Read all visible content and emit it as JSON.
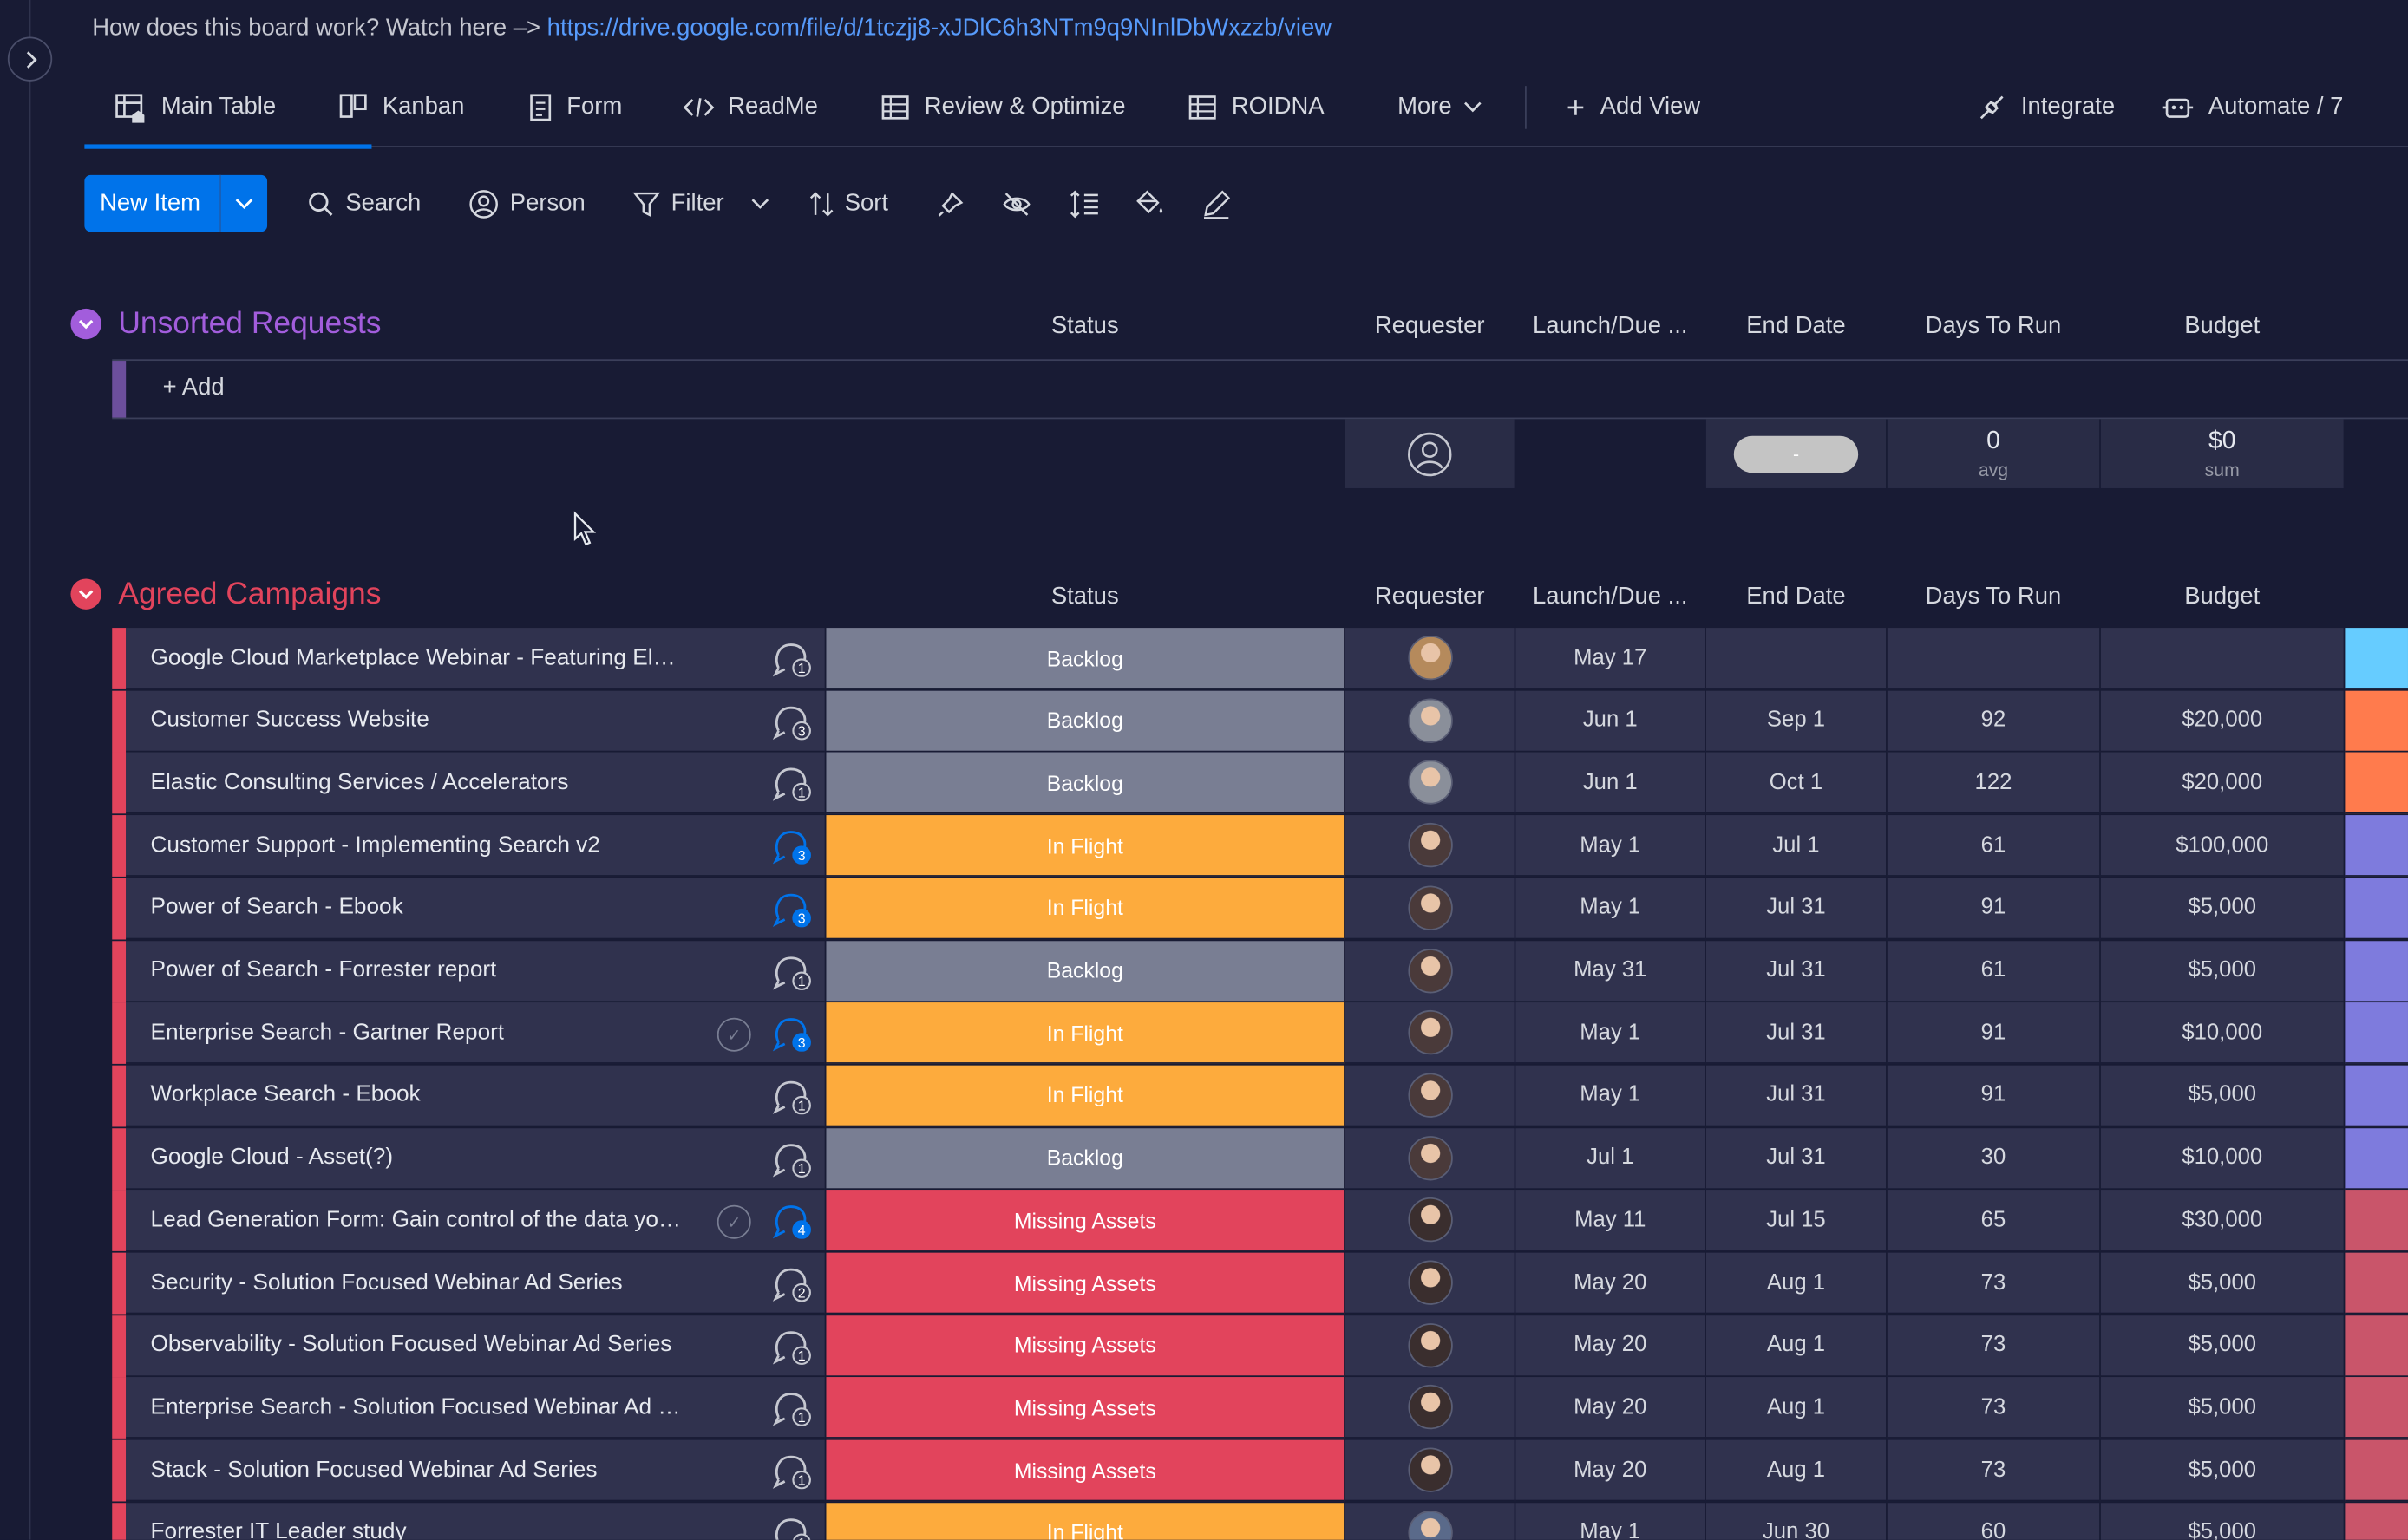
{
  "help": {
    "text": "How does this board work? Watch here –> ",
    "link": "https://drive.google.com/file/d/1tczjj8-xJDlC6h3NTm9q9NInlDbWxzzb/view"
  },
  "tabs": [
    {
      "label": "Main Table",
      "icon": "table-home-icon"
    },
    {
      "label": "Kanban",
      "icon": "kanban-icon"
    },
    {
      "label": "Form",
      "icon": "form-icon"
    },
    {
      "label": "ReadMe",
      "icon": "code-icon"
    },
    {
      "label": "Review & Optimize",
      "icon": "table-icon"
    },
    {
      "label": "ROIDNA",
      "icon": "table-icon"
    }
  ],
  "more_label": "More",
  "add_view_label": "Add View",
  "integrate_label": "Integrate",
  "automate_label": "Automate / 7",
  "toolbar": {
    "new_item": "New Item",
    "search": "Search",
    "person": "Person",
    "filter": "Filter",
    "sort": "Sort"
  },
  "columns": {
    "status": "Status",
    "requester": "Requester",
    "launch": "Launch/Due ...",
    "end": "End Date",
    "days": "Days To Run",
    "budget": "Budget"
  },
  "groups": {
    "unsorted": {
      "title": "Unsorted Requests",
      "color": "#a25ddc",
      "add_label": "+ Add",
      "summary": {
        "end_pill": "-",
        "days": "0",
        "days_label": "avg",
        "budget": "$0",
        "budget_label": "sum"
      }
    },
    "agreed": {
      "title": "Agreed Campaigns",
      "color": "#e2445c"
    }
  },
  "status_colors": {
    "Backlog": "#797e93",
    "In Flight": "#fdab3d",
    "Missing Assets": "#e2445c"
  },
  "rows": [
    {
      "name": "Google Cloud Marketplace Webinar - Featuring Elastic",
      "updates": "1",
      "active": false,
      "check": false,
      "status": "Backlog",
      "launch": "May 17",
      "end": "",
      "days": "",
      "budget": "",
      "tag": "#66ccff",
      "avatar": "#b58a5c"
    },
    {
      "name": "Customer Success Website",
      "updates": "3",
      "active": false,
      "check": false,
      "status": "Backlog",
      "launch": "Jun 1",
      "end": "Sep 1",
      "days": "92",
      "budget": "$20,000",
      "tag": "#ff7b4d",
      "avatar": "#8a8f9a"
    },
    {
      "name": "Elastic Consulting Services / Accelerators",
      "updates": "1",
      "active": false,
      "check": false,
      "status": "Backlog",
      "launch": "Jun 1",
      "end": "Oct 1",
      "days": "122",
      "budget": "$20,000",
      "tag": "#ff7b4d",
      "avatar": "#8a8f9a"
    },
    {
      "name": "Customer Support - Implementing Search v2",
      "updates": "3",
      "active": true,
      "check": false,
      "status": "In Flight",
      "launch": "May 1",
      "end": "Jul 1",
      "days": "61",
      "budget": "$100,000",
      "tag": "#7e7bdd",
      "avatar": "#4a3a3a"
    },
    {
      "name": "Power of Search - Ebook",
      "updates": "3",
      "active": true,
      "check": false,
      "status": "In Flight",
      "launch": "May 1",
      "end": "Jul 31",
      "days": "91",
      "budget": "$5,000",
      "tag": "#7e7bdd",
      "avatar": "#4a3a3a"
    },
    {
      "name": "Power of Search - Forrester report",
      "updates": "1",
      "active": false,
      "check": false,
      "status": "Backlog",
      "launch": "May 31",
      "end": "Jul 31",
      "days": "61",
      "budget": "$5,000",
      "tag": "#7e7bdd",
      "avatar": "#4a3a3a"
    },
    {
      "name": "Enterprise Search - Gartner Report",
      "updates": "3",
      "active": true,
      "check": true,
      "status": "In Flight",
      "launch": "May 1",
      "end": "Jul 31",
      "days": "91",
      "budget": "$10,000",
      "tag": "#7e7bdd",
      "avatar": "#4a3a3a"
    },
    {
      "name": "Workplace Search - Ebook",
      "updates": "1",
      "active": false,
      "check": false,
      "status": "In Flight",
      "launch": "May 1",
      "end": "Jul 31",
      "days": "91",
      "budget": "$5,000",
      "tag": "#7e7bdd",
      "avatar": "#4a3a3a"
    },
    {
      "name": "Google Cloud - Asset(?)",
      "updates": "1",
      "active": false,
      "check": false,
      "status": "Backlog",
      "launch": "Jul 1",
      "end": "Jul 31",
      "days": "30",
      "budget": "$10,000",
      "tag": "#7e7bdd",
      "avatar": "#4a3a3a"
    },
    {
      "name": "Lead Generation Form: Gain control of the data your organization creates",
      "updates": "4",
      "active": true,
      "check": true,
      "status": "Missing Assets",
      "launch": "May 11",
      "end": "Jul 15",
      "days": "65",
      "budget": "$30,000",
      "tag": "#c9556a",
      "avatar": "#3a2e2e"
    },
    {
      "name": "Security - Solution Focused Webinar Ad Series",
      "updates": "2",
      "active": false,
      "check": false,
      "status": "Missing Assets",
      "launch": "May 20",
      "end": "Aug 1",
      "days": "73",
      "budget": "$5,000",
      "tag": "#c9556a",
      "avatar": "#3a2e2e"
    },
    {
      "name": "Observability - Solution Focused Webinar Ad Series",
      "updates": "1",
      "active": false,
      "check": false,
      "status": "Missing Assets",
      "launch": "May 20",
      "end": "Aug 1",
      "days": "73",
      "budget": "$5,000",
      "tag": "#c9556a",
      "avatar": "#3a2e2e"
    },
    {
      "name": "Enterprise Search - Solution Focused Webinar Ad Series",
      "updates": "1",
      "active": false,
      "check": false,
      "status": "Missing Assets",
      "launch": "May 20",
      "end": "Aug 1",
      "days": "73",
      "budget": "$5,000",
      "tag": "#c9556a",
      "avatar": "#3a2e2e"
    },
    {
      "name": "Stack - Solution Focused Webinar Ad Series",
      "updates": "1",
      "active": false,
      "check": false,
      "status": "Missing Assets",
      "launch": "May 20",
      "end": "Aug 1",
      "days": "73",
      "budget": "$5,000",
      "tag": "#c9556a",
      "avatar": "#3a2e2e"
    },
    {
      "name": "Forrester IT Leader study",
      "updates": "1",
      "active": false,
      "check": false,
      "status": "In Flight",
      "launch": "May 1",
      "end": "Jun 30",
      "days": "60",
      "budget": "$5,000",
      "tag": "#c9556a",
      "avatar": "#5a6a8a"
    }
  ]
}
